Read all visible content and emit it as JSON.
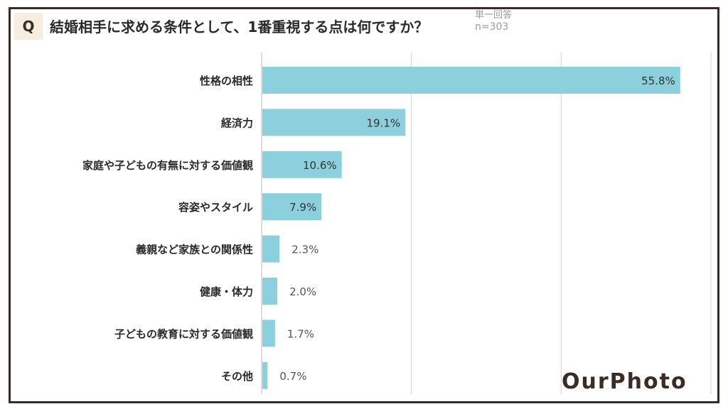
{
  "header": {
    "q_label": "Q",
    "question": "結婚相手に求める条件として、1番重視する点は何ですか？",
    "answer_type": "単一回答",
    "sample_size": "n=303"
  },
  "brand": "OurPhoto",
  "colors": {
    "bar": "#8bd0dc",
    "frame": "#3a2c24",
    "grid": "#d0d0d0",
    "label_inside": "#333333",
    "label_outside": "#555555"
  },
  "chart_data": {
    "type": "bar",
    "orientation": "horizontal",
    "categories": [
      "性格の相性",
      "経済力",
      "家庭や子どもの有無に対する価値観",
      "容姿やスタイル",
      "義親など家族との関係性",
      "健康・体力",
      "子どもの教育に対する価値観",
      "その他"
    ],
    "values": [
      55.8,
      19.1,
      10.6,
      7.9,
      2.3,
      2.0,
      1.7,
      0.7
    ],
    "value_labels": [
      "55.8%",
      "19.1%",
      "10.6%",
      "7.9%",
      "2.3%",
      "2.0%",
      "1.7%",
      "0.7%"
    ],
    "xlim": [
      0,
      60
    ],
    "gridlines": [
      0,
      20,
      40,
      60
    ],
    "grid": true,
    "title": "",
    "xlabel": "",
    "ylabel": ""
  }
}
